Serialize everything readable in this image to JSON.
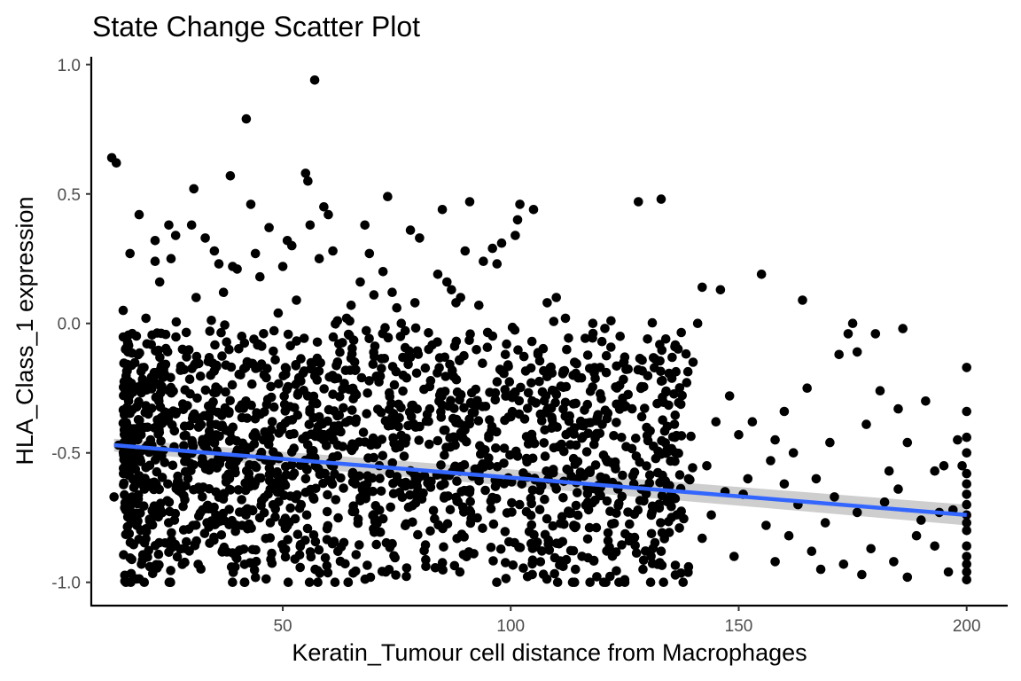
{
  "chart_data": {
    "type": "scatter",
    "title": "State Change Scatter Plot",
    "xlabel": "Keratin_Tumour cell distance from  Macrophages",
    "ylabel": "HLA_Class_1 expression",
    "xlim": [
      8,
      209
    ],
    "ylim": [
      -1.09,
      1.03
    ],
    "x_ticks": [
      50,
      100,
      150,
      200
    ],
    "x_tick_labels": [
      "50",
      "100",
      "150",
      "200"
    ],
    "y_ticks": [
      -1.0,
      -0.5,
      0.0,
      0.5,
      1.0
    ],
    "y_tick_labels": [
      "-1.0",
      "-0.5",
      "0.0",
      "0.5",
      "1.0"
    ],
    "grid": false,
    "legend": "none",
    "point_color": "#000000",
    "trend_color": "#3366FF",
    "ribbon_color": "#BEBEBE",
    "trend_line": {
      "type": "linear",
      "x": [
        13,
        200
      ],
      "y": [
        -0.47,
        -0.74
      ],
      "ci_lower": [
        -0.495,
        -0.78
      ],
      "ci_upper": [
        -0.445,
        -0.7
      ]
    },
    "series": [
      {
        "points": [
          [
            12.5,
            0.64
          ],
          [
            13.5,
            0.62
          ],
          [
            14,
            -0.47
          ],
          [
            13,
            -0.67
          ],
          [
            15,
            0.05
          ],
          [
            15.5,
            -0.1
          ],
          [
            16.5,
            0.27
          ],
          [
            17,
            -0.67
          ],
          [
            18,
            -0.78
          ],
          [
            18.5,
            0.42
          ],
          [
            19,
            -0.93
          ],
          [
            20,
            0.02
          ],
          [
            20.5,
            -0.35
          ],
          [
            21,
            -0.45
          ],
          [
            22,
            0.32
          ],
          [
            22,
            0.24
          ],
          [
            23,
            0.16
          ],
          [
            24,
            -0.2
          ],
          [
            25,
            0.38
          ],
          [
            25.5,
            0.25
          ],
          [
            26.5,
            0.34
          ],
          [
            28,
            -0.1
          ],
          [
            30,
            0.38
          ],
          [
            30.5,
            0.52
          ],
          [
            31,
            0.1
          ],
          [
            33,
            0.33
          ],
          [
            34,
            -0.03
          ],
          [
            35,
            0.28
          ],
          [
            36,
            0.23
          ],
          [
            37,
            0.12
          ],
          [
            38.5,
            0.57
          ],
          [
            39,
            0.22
          ],
          [
            40,
            0.21
          ],
          [
            41,
            -0.05
          ],
          [
            42,
            0.79
          ],
          [
            43,
            0.46
          ],
          [
            44,
            0.27
          ],
          [
            45,
            0.18
          ],
          [
            47,
            0.37
          ],
          [
            49,
            0.04
          ],
          [
            50,
            0.22
          ],
          [
            51,
            0.32
          ],
          [
            52,
            0.3
          ],
          [
            53,
            0.09
          ],
          [
            55,
            0.58
          ],
          [
            55.5,
            0.55
          ],
          [
            56,
            0.38
          ],
          [
            57,
            0.94
          ],
          [
            58,
            0.25
          ],
          [
            59,
            0.45
          ],
          [
            60,
            0.42
          ],
          [
            61,
            0.28
          ],
          [
            62,
            0.01
          ],
          [
            64,
            0.02
          ],
          [
            65,
            0.07
          ],
          [
            67,
            0.16
          ],
          [
            68,
            0.38
          ],
          [
            69,
            0.27
          ],
          [
            70,
            0.11
          ],
          [
            72,
            0.2
          ],
          [
            73,
            0.49
          ],
          [
            74,
            0.12
          ],
          [
            75,
            0.06
          ],
          [
            76,
            0.0
          ],
          [
            78,
            0.36
          ],
          [
            79,
            0.08
          ],
          [
            80,
            0.33
          ],
          [
            82,
            -0.1
          ],
          [
            84,
            0.19
          ],
          [
            85,
            0.44
          ],
          [
            86,
            0.16
          ],
          [
            87,
            0.13
          ],
          [
            88,
            0.08
          ],
          [
            89,
            0.1
          ],
          [
            90,
            0.28
          ],
          [
            91,
            0.47
          ],
          [
            93,
            0.07
          ],
          [
            94,
            0.24
          ],
          [
            96,
            0.29
          ],
          [
            97,
            0.23
          ],
          [
            98,
            0.31
          ],
          [
            101,
            0.34
          ],
          [
            101.5,
            0.4
          ],
          [
            102,
            0.46
          ],
          [
            105,
            0.44
          ],
          [
            106,
            -0.12
          ],
          [
            108,
            0.08
          ],
          [
            110,
            0.1
          ],
          [
            112,
            0.02
          ],
          [
            114,
            -0.15
          ],
          [
            118,
            0.0
          ],
          [
            120,
            -0.07
          ],
          [
            122,
            0.01
          ],
          [
            124,
            -0.05
          ],
          [
            125,
            -0.13
          ],
          [
            128,
            0.47
          ],
          [
            130,
            -0.06
          ],
          [
            133,
            0.48
          ],
          [
            134,
            -0.06
          ],
          [
            136,
            -0.09
          ],
          [
            140,
            -0.15
          ],
          [
            141,
            0.0
          ],
          [
            142,
            0.14
          ],
          [
            145,
            -0.38
          ],
          [
            146,
            0.13
          ],
          [
            148,
            -0.28
          ],
          [
            150,
            -0.43
          ],
          [
            153,
            -0.38
          ],
          [
            155,
            0.19
          ],
          [
            158,
            -0.45
          ],
          [
            160,
            -0.34
          ],
          [
            162,
            -0.5
          ],
          [
            164,
            0.09
          ],
          [
            165,
            -0.25
          ],
          [
            167,
            -0.6
          ],
          [
            170,
            -0.46
          ],
          [
            172,
            -0.12
          ],
          [
            174,
            -0.04
          ],
          [
            175,
            0.0
          ],
          [
            176,
            -0.11
          ],
          [
            178,
            -0.39
          ],
          [
            180,
            -0.04
          ],
          [
            181,
            -0.26
          ],
          [
            183,
            -0.57
          ],
          [
            185,
            -0.33
          ],
          [
            186,
            -0.02
          ],
          [
            187,
            -0.46
          ],
          [
            189,
            -0.82
          ],
          [
            191,
            -0.3
          ],
          [
            193,
            -0.57
          ],
          [
            195,
            -0.55
          ],
          [
            197,
            -0.72
          ],
          [
            198,
            -0.45
          ],
          [
            199,
            -0.55
          ],
          [
            200,
            -0.17
          ],
          [
            200,
            -0.34
          ],
          [
            200,
            -0.44
          ],
          [
            200,
            -0.5
          ],
          [
            200,
            -0.58
          ],
          [
            200,
            -0.66
          ],
          [
            200,
            -0.74
          ],
          [
            200,
            -0.8
          ],
          [
            200,
            -0.86
          ],
          [
            200,
            -0.9
          ],
          [
            200,
            -0.96
          ],
          [
            200,
            -0.99
          ],
          [
            200,
            -0.62
          ],
          [
            200,
            -0.7
          ],
          [
            200,
            -0.77
          ],
          [
            200,
            -0.93
          ],
          [
            160,
            -0.62
          ],
          [
            163,
            -0.7
          ],
          [
            166,
            -0.88
          ],
          [
            168,
            -0.95
          ],
          [
            171,
            -0.67
          ],
          [
            173,
            -0.93
          ],
          [
            176,
            -0.73
          ],
          [
            179,
            -0.87
          ],
          [
            182,
            -0.69
          ],
          [
            184,
            -0.92
          ],
          [
            187,
            -0.98
          ],
          [
            190,
            -0.76
          ],
          [
            193,
            -0.86
          ],
          [
            196,
            -0.96
          ],
          [
            152,
            -0.6
          ],
          [
            156,
            -0.78
          ],
          [
            158,
            -0.92
          ],
          [
            147,
            -0.65
          ],
          [
            149,
            -0.9
          ],
          [
            144,
            -0.74
          ],
          [
            142,
            -0.83
          ],
          [
            139,
            -0.94
          ],
          [
            137,
            -0.79
          ],
          [
            135,
            -0.67
          ],
          [
            133,
            -0.88
          ],
          [
            131,
            -0.73
          ],
          [
            129,
            -0.95
          ],
          [
            127,
            -0.62
          ],
          [
            126,
            -0.84
          ],
          [
            125,
            -0.99
          ],
          [
            143,
            -0.55
          ],
          [
            151,
            -0.66
          ],
          [
            157,
            -0.53
          ],
          [
            161,
            -0.82
          ],
          [
            169,
            -0.77
          ],
          [
            177,
            -0.97
          ],
          [
            185,
            -0.64
          ],
          [
            194,
            -0.73
          ],
          [
            139,
            -0.6
          ],
          [
            136,
            -0.44
          ]
        ]
      }
    ]
  }
}
